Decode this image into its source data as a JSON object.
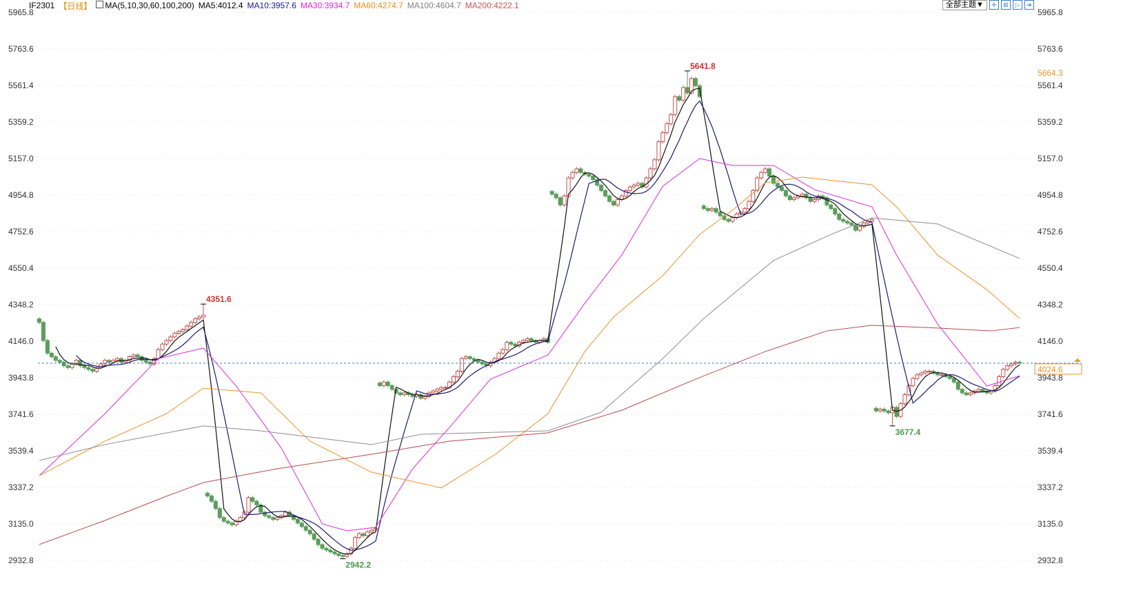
{
  "header": {
    "symbol": "IF2301",
    "period": "【日线】",
    "ma_params": "MA(5,10,30,60,100,200)",
    "ma5": "MA5:4012.4",
    "ma10": "MA10:3957.6",
    "ma30": "MA30:3934.7",
    "ma60": "MA60:4274.7",
    "ma100": "MA100:4604.7",
    "ma200": "MA200:4222.1"
  },
  "toolbar": {
    "theme_label": "全部主题▼",
    "icons": [
      "crosshair-icon",
      "zoom-in-icon",
      "zoom-out-icon",
      "move-right-icon"
    ]
  },
  "colors": {
    "up": "#c0504d",
    "down": "#5a9e5a",
    "ma5": "#111111",
    "ma10": "#1a1a70",
    "ma30": "#d82bd8",
    "ma60": "#e8932a",
    "ma100": "#8c8c8c",
    "ma200": "#b84a4a",
    "last": "#3b7ec8"
  },
  "chart_data": {
    "type": "candlestick",
    "ylim": [
      2932.8,
      5965.8
    ],
    "yticks": [
      "5965.8",
      "5763.6",
      "5561.4",
      "5359.2",
      "5157.0",
      "4954.8",
      "4752.6",
      "4550.4",
      "4348.2",
      "4146.0",
      "3943.8",
      "3741.6",
      "3539.4",
      "3337.2",
      "3135.0",
      "2932.8"
    ],
    "closes": [
      4250,
      4150,
      4080,
      4060,
      4040,
      4030,
      4010,
      4000,
      4020,
      4040,
      4010,
      4000,
      3990,
      3980,
      4000,
      4020,
      4040,
      4030,
      4040,
      4050,
      4030,
      4040,
      4060,
      4070,
      4060,
      4040,
      4030,
      4020,
      4050,
      4100,
      4130,
      4150,
      4170,
      4190,
      4200,
      4210,
      4230,
      4250,
      4270,
      4280,
      4290,
      3290,
      3260,
      3220,
      3170,
      3150,
      3140,
      3130,
      3150,
      3170,
      3200,
      3280,
      3260,
      3240,
      3200,
      3180,
      3170,
      3160,
      3170,
      3180,
      3200,
      3180,
      3160,
      3140,
      3120,
      3100,
      3080,
      3050,
      3020,
      3000,
      2990,
      2980,
      2970,
      2960,
      2955,
      2970,
      3000,
      3060,
      3080,
      3070,
      3090,
      3100,
      3110,
      3900,
      3920,
      3900,
      3880,
      3860,
      3850,
      3860,
      3850,
      3840,
      3850,
      3830,
      3840,
      3860,
      3870,
      3880,
      3890,
      3890,
      3920,
      3950,
      3980,
      4050,
      4060,
      4050,
      4040,
      4030,
      4020,
      4010,
      4030,
      4050,
      4080,
      4100,
      4140,
      4130,
      4120,
      4140,
      4150,
      4160,
      4150,
      4140,
      4150,
      4160,
      4140,
      4960,
      4940,
      4900,
      4950,
      5050,
      5080,
      5100,
      5080,
      5070,
      5060,
      5040,
      5010,
      4980,
      4950,
      4920,
      4900,
      4930,
      4950,
      4980,
      5000,
      5010,
      5020,
      5000,
      5050,
      5100,
      5150,
      5250,
      5300,
      5350,
      5400,
      5500,
      5480,
      5550,
      5520,
      5600,
      5560,
      5500,
      4880,
      4870,
      4880,
      4860,
      4840,
      4820,
      4810,
      4830,
      4850,
      4860,
      4880,
      4920,
      4980,
      5050,
      5080,
      5100,
      5060,
      5020,
      5000,
      4980,
      4950,
      4930,
      4940,
      4950,
      4960,
      4940,
      4920,
      4930,
      4950,
      4940,
      4900,
      4880,
      4850,
      4820,
      4810,
      4800,
      4790,
      4760,
      4780,
      4800,
      4810,
      4820,
      3760,
      3770,
      3760,
      3750,
      3780,
      3730,
      3800,
      3850,
      3900,
      3940,
      3960,
      3970,
      3980,
      3980,
      3970,
      3960,
      3960,
      3950,
      3940,
      3920,
      3880,
      3860,
      3850,
      3860,
      3870,
      3880,
      3870,
      3860,
      3870,
      3900,
      3950,
      3990,
      4010,
      4020,
      4030,
      4024.6
    ],
    "ma_lines": {
      "ma30": [
        [
          0,
          3402
        ],
        [
          16,
          3745
        ],
        [
          29,
          4050
        ],
        [
          40,
          4108
        ],
        [
          48,
          3898
        ],
        [
          59,
          3555
        ],
        [
          69,
          3135
        ],
        [
          75,
          3097
        ],
        [
          82,
          3116
        ],
        [
          91,
          3440
        ],
        [
          100,
          3669
        ],
        [
          110,
          3936
        ],
        [
          124,
          4070
        ],
        [
          133,
          4356
        ],
        [
          142,
          4623
        ],
        [
          152,
          5004
        ],
        [
          161,
          5157
        ],
        [
          169,
          5119
        ],
        [
          179,
          5119
        ],
        [
          189,
          4985
        ],
        [
          203,
          4890
        ],
        [
          209,
          4623
        ],
        [
          219,
          4241
        ],
        [
          231,
          3898
        ],
        [
          239,
          3955
        ]
      ],
      "ma60": [
        [
          0,
          3402
        ],
        [
          16,
          3593
        ],
        [
          31,
          3745
        ],
        [
          40,
          3886
        ],
        [
          54,
          3860
        ],
        [
          66,
          3593
        ],
        [
          81,
          3421
        ],
        [
          98,
          3334
        ],
        [
          111,
          3517
        ],
        [
          124,
          3745
        ],
        [
          133,
          4089
        ],
        [
          140,
          4280
        ],
        [
          152,
          4509
        ],
        [
          161,
          4737
        ],
        [
          169,
          4871
        ],
        [
          177,
          5023
        ],
        [
          186,
          5054
        ],
        [
          203,
          5012
        ],
        [
          209,
          4890
        ],
        [
          219,
          4623
        ],
        [
          231,
          4432
        ],
        [
          239,
          4272
        ]
      ],
      "ma100": [
        [
          0,
          3486
        ],
        [
          16,
          3574
        ],
        [
          40,
          3677
        ],
        [
          54,
          3650
        ],
        [
          81,
          3574
        ],
        [
          93,
          3631
        ],
        [
          124,
          3650
        ],
        [
          137,
          3753
        ],
        [
          152,
          4050
        ],
        [
          162,
          4272
        ],
        [
          179,
          4593
        ],
        [
          193,
          4737
        ],
        [
          203,
          4829
        ],
        [
          219,
          4795
        ],
        [
          239,
          4604
        ]
      ],
      "ma200": [
        [
          0,
          3021
        ],
        [
          16,
          3154
        ],
        [
          31,
          3288
        ],
        [
          40,
          3364
        ],
        [
          58,
          3440
        ],
        [
          82,
          3524
        ],
        [
          100,
          3593
        ],
        [
          124,
          3639
        ],
        [
          142,
          3764
        ],
        [
          160,
          3936
        ],
        [
          177,
          4089
        ],
        [
          192,
          4203
        ],
        [
          203,
          4234
        ],
        [
          219,
          4219
        ],
        [
          232,
          4203
        ],
        [
          239,
          4222
        ]
      ]
    },
    "annotations": [
      {
        "index": 40,
        "value": 4351.6,
        "label": "4351.6",
        "kind": "high"
      },
      {
        "index": 74,
        "value": 2942.2,
        "label": "2942.2",
        "kind": "low"
      },
      {
        "index": 158,
        "value": 5641.8,
        "label": "5641.8",
        "kind": "high"
      },
      {
        "index": 208,
        "value": 3677.4,
        "label": "3677.4",
        "kind": "low"
      }
    ],
    "last_price": {
      "value": 4024.6,
      "label": "4024.6"
    },
    "side_label": {
      "value": 5664.3,
      "label": "5664.3"
    }
  }
}
